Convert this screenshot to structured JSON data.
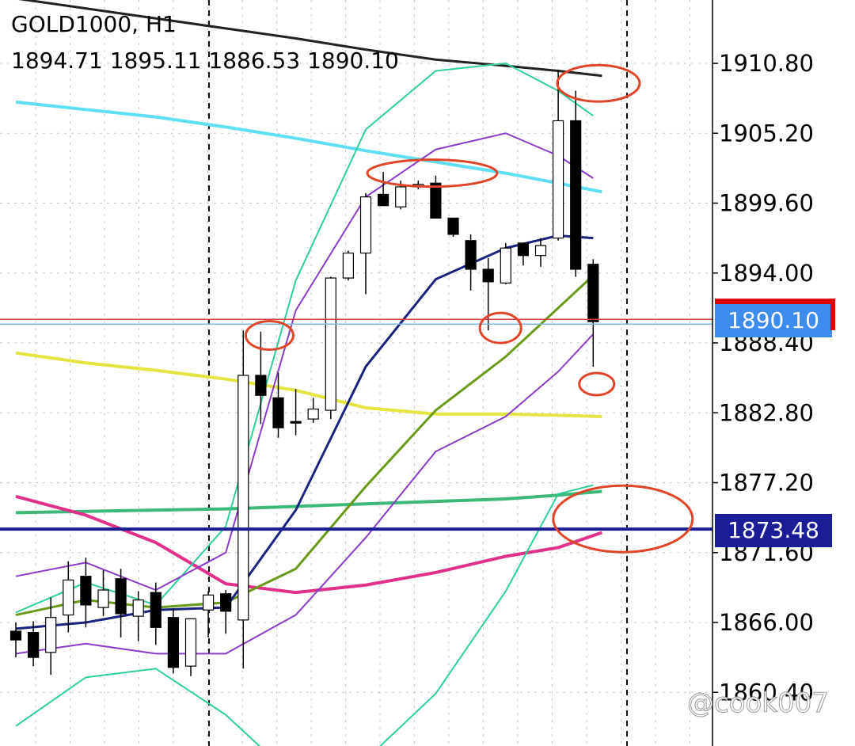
{
  "header": {
    "symbol": "GOLD1000, H1",
    "ohlc": "1894.71 1895.11 1886.53 1890.10"
  },
  "price_tags": {
    "current_price": "1890.10",
    "level_price": "1873.48"
  },
  "watermark": "@cook007",
  "colors": {
    "bull_candle": "#ffffff",
    "bear_candle": "#000000",
    "ma_cyan": "#5ee0f0",
    "ma_black": "#222222",
    "ma_yellow": "#e5e542",
    "ma_green_flat": "#3cb878",
    "ma_magenta": "#e0308a",
    "bb_outer": "#2ecf9a",
    "bb_inner": "#8a3cc8",
    "ma_navy": "#1a237e",
    "ma_olive": "#6a9a1a",
    "annotation": "#e0452a",
    "current_price_line": "#d04040",
    "level_line": "#1c1c96"
  },
  "chart_data": {
    "type": "candlestick",
    "title": "GOLD1000, H1",
    "y_ticks": [
      "1910.80",
      "1905.20",
      "1899.60",
      "1894.00",
      "1888.40",
      "1882.80",
      "1877.20",
      "1871.60",
      "1866.00",
      "1860.40"
    ],
    "ylim": [
      1858.0,
      1915.5
    ],
    "current_price": 1890.1,
    "level_price": 1873.48,
    "candles": [
      {
        "o": 1865.3,
        "h": 1866.0,
        "l": 1863.2,
        "c": 1864.6
      },
      {
        "o": 1865.2,
        "h": 1866.1,
        "l": 1862.5,
        "c": 1863.2
      },
      {
        "o": 1863.6,
        "h": 1868.0,
        "l": 1861.8,
        "c": 1866.4
      },
      {
        "o": 1866.6,
        "h": 1870.9,
        "l": 1865.2,
        "c": 1869.4
      },
      {
        "o": 1869.7,
        "h": 1871.2,
        "l": 1865.6,
        "c": 1867.4
      },
      {
        "o": 1867.2,
        "h": 1870.2,
        "l": 1866.5,
        "c": 1868.6
      },
      {
        "o": 1869.5,
        "h": 1870.3,
        "l": 1864.8,
        "c": 1866.7
      },
      {
        "o": 1866.5,
        "h": 1868.5,
        "l": 1864.5,
        "c": 1867.8
      },
      {
        "o": 1868.4,
        "h": 1869.2,
        "l": 1864.2,
        "c": 1865.6
      },
      {
        "o": 1866.4,
        "h": 1867.1,
        "l": 1861.9,
        "c": 1862.4
      },
      {
        "o": 1862.5,
        "h": 1866.3,
        "l": 1861.7,
        "c": 1866.3
      },
      {
        "o": 1867.0,
        "h": 1868.5,
        "l": 1864.8,
        "c": 1868.2
      },
      {
        "o": 1868.3,
        "h": 1868.6,
        "l": 1865.1,
        "c": 1866.9
      },
      {
        "o": 1866.2,
        "h": 1889.4,
        "l": 1862.3,
        "c": 1885.8
      },
      {
        "o": 1885.8,
        "h": 1889.3,
        "l": 1881.9,
        "c": 1884.2
      },
      {
        "o": 1884.0,
        "h": 1886.0,
        "l": 1880.8,
        "c": 1881.6
      },
      {
        "o": 1882.1,
        "h": 1884.7,
        "l": 1881.0,
        "c": 1882.0
      },
      {
        "o": 1882.3,
        "h": 1884.0,
        "l": 1882.0,
        "c": 1883.1
      },
      {
        "o": 1883.0,
        "h": 1893.7,
        "l": 1882.3,
        "c": 1893.6
      },
      {
        "o": 1893.6,
        "h": 1895.8,
        "l": 1893.4,
        "c": 1895.6
      },
      {
        "o": 1895.6,
        "h": 1900.4,
        "l": 1892.3,
        "c": 1900.1
      },
      {
        "o": 1900.3,
        "h": 1902.1,
        "l": 1899.5,
        "c": 1899.4
      },
      {
        "o": 1899.3,
        "h": 1901.4,
        "l": 1899.1,
        "c": 1900.9
      },
      {
        "o": 1900.9,
        "h": 1901.4,
        "l": 1900.7,
        "c": 1901.1
      },
      {
        "o": 1901.2,
        "h": 1901.8,
        "l": 1898.7,
        "c": 1898.4
      },
      {
        "o": 1898.4,
        "h": 1898.3,
        "l": 1896.9,
        "c": 1897.1
      },
      {
        "o": 1896.6,
        "h": 1897.1,
        "l": 1892.6,
        "c": 1894.3
      },
      {
        "o": 1894.3,
        "h": 1895.2,
        "l": 1889.4,
        "c": 1893.3
      },
      {
        "o": 1893.2,
        "h": 1896.4,
        "l": 1893.1,
        "c": 1896.0
      },
      {
        "o": 1896.4,
        "h": 1896.3,
        "l": 1894.6,
        "c": 1895.4
      },
      {
        "o": 1895.4,
        "h": 1896.8,
        "l": 1894.5,
        "c": 1896.2
      },
      {
        "o": 1896.8,
        "h": 1910.3,
        "l": 1896.6,
        "c": 1906.2
      },
      {
        "o": 1906.2,
        "h": 1908.6,
        "l": 1893.7,
        "c": 1894.3
      },
      {
        "o": 1894.7,
        "h": 1895.1,
        "l": 1886.5,
        "c": 1890.1
      }
    ],
    "ma_cyan": [
      1907.7,
      1907.1,
      1906.5,
      1905.7,
      1904.8,
      1903.8,
      1902.9,
      1902.0,
      1901.2,
      1900.5
    ],
    "ma_black": [
      1916.0,
      1915.2,
      1914.4,
      1913.6,
      1912.8,
      1911.9,
      1911.1,
      1910.6,
      1910.2,
      1909.8
    ],
    "ma_yellow": [
      1887.6,
      1886.8,
      1886.2,
      1885.5,
      1884.6,
      1883.2,
      1882.7,
      1882.7,
      1882.6,
      1882.5
    ],
    "ma_green_flat": [
      1874.8,
      1874.9,
      1875.0,
      1875.1,
      1875.3,
      1875.5,
      1875.7,
      1875.9,
      1876.2,
      1876.5
    ],
    "ma_magenta": [
      1876.1,
      1874.6,
      1872.4,
      1869.1,
      1868.4,
      1869.0,
      1870.0,
      1871.3,
      1872.0,
      1873.2
    ],
    "ma_navy": [
      1865.5,
      1866.0,
      1867.0,
      1867.2,
      1875.0,
      1886.5,
      1893.5,
      1896.0,
      1897.0,
      1896.8
    ],
    "ma_olive": [
      1866.6,
      1867.8,
      1867.2,
      1867.6,
      1870.3,
      1876.9,
      1883.0,
      1887.3,
      1891.2,
      1893.8
    ],
    "bb_upper": [
      1866.8,
      1869.2,
      1867.4,
      1873.7,
      1893.4,
      1905.5,
      1910.2,
      1910.8,
      1908.6,
      1906.6
    ],
    "bb_lower": [
      1857.7,
      1861.6,
      1862.3,
      1858.6,
      1853.4,
      1855.0,
      1860.3,
      1868.5,
      1876.3,
      1877.0
    ],
    "bb_inner_upper": [
      1869.7,
      1870.8,
      1868.6,
      1871.6,
      1891.0,
      1900.1,
      1903.9,
      1905.2,
      1903.4,
      1901.6
    ],
    "bb_inner_lower": [
      1863.5,
      1864.3,
      1863.5,
      1863.5,
      1866.6,
      1872.8,
      1879.7,
      1882.5,
      1886.1,
      1889.1
    ],
    "x_index": [
      0,
      4,
      8,
      12,
      16,
      20,
      24,
      28,
      31,
      33
    ],
    "annotations": [
      "circle",
      "circle",
      "circle",
      "circle",
      "circle",
      "circle"
    ]
  }
}
